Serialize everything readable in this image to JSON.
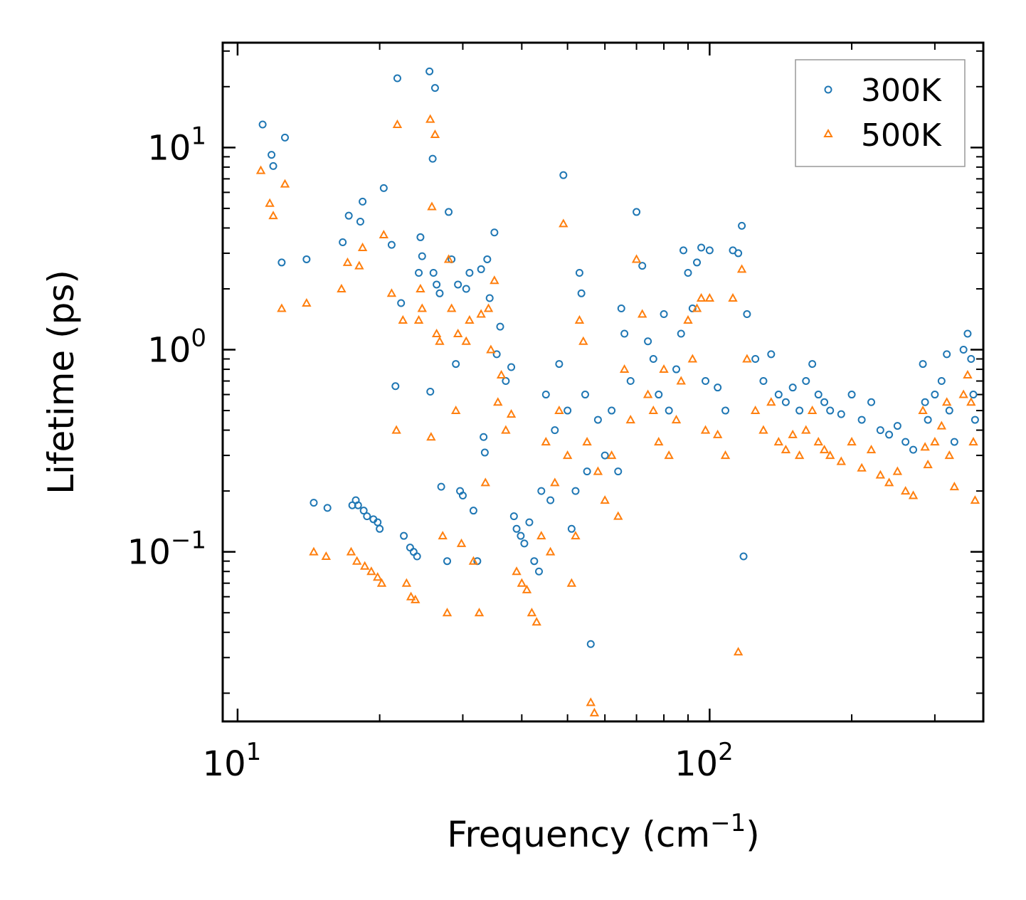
{
  "chart_data": {
    "type": "scatter",
    "title": "",
    "xlabel": "Frequency (cm",
    "xlabel_sup": "−1",
    "xlabel_end": ")",
    "ylabel": "Lifetime (ps)",
    "xscale": "log",
    "yscale": "log",
    "xlim": [
      9.3,
      380
    ],
    "ylim": [
      0.0145,
      33
    ],
    "x_ticks": [
      {
        "value": 10,
        "base": "10",
        "exp": "1"
      },
      {
        "value": 100,
        "base": "10",
        "exp": "2"
      }
    ],
    "y_ticks": [
      {
        "value": 0.1,
        "base": "10",
        "exp": "−1"
      },
      {
        "value": 1,
        "base": "10",
        "exp": "0"
      },
      {
        "value": 10,
        "base": "10",
        "exp": "1"
      }
    ],
    "legend_position": "top-right",
    "series": [
      {
        "name": "300K",
        "marker": "circle",
        "color": "#1f77b4",
        "points": [
          [
            11.3,
            13.0
          ],
          [
            11.8,
            9.2
          ],
          [
            11.9,
            8.1
          ],
          [
            12.4,
            2.7
          ],
          [
            12.6,
            11.2
          ],
          [
            14.0,
            2.8
          ],
          [
            14.5,
            0.175
          ],
          [
            15.5,
            0.165
          ],
          [
            16.7,
            3.4
          ],
          [
            17.2,
            4.6
          ],
          [
            17.5,
            0.17
          ],
          [
            17.8,
            0.18
          ],
          [
            18.0,
            0.17
          ],
          [
            18.2,
            4.3
          ],
          [
            18.4,
            5.4
          ],
          [
            18.5,
            0.16
          ],
          [
            18.8,
            0.15
          ],
          [
            19.4,
            0.145
          ],
          [
            19.8,
            0.14
          ],
          [
            20.0,
            0.13
          ],
          [
            20.4,
            6.3
          ],
          [
            21.2,
            3.3
          ],
          [
            21.6,
            0.66
          ],
          [
            21.8,
            22.0
          ],
          [
            22.2,
            1.7
          ],
          [
            22.5,
            0.12
          ],
          [
            23.2,
            0.105
          ],
          [
            23.6,
            0.1
          ],
          [
            24.0,
            0.095
          ],
          [
            24.2,
            2.4
          ],
          [
            24.4,
            3.6
          ],
          [
            24.6,
            2.9
          ],
          [
            25.5,
            23.8
          ],
          [
            25.6,
            0.62
          ],
          [
            25.9,
            8.8
          ],
          [
            26.0,
            2.4
          ],
          [
            26.2,
            19.7
          ],
          [
            26.4,
            2.1
          ],
          [
            26.8,
            1.9
          ],
          [
            27.0,
            0.21
          ],
          [
            27.8,
            0.09
          ],
          [
            28.0,
            4.8
          ],
          [
            28.4,
            2.8
          ],
          [
            29.0,
            0.85
          ],
          [
            29.3,
            2.1
          ],
          [
            29.6,
            0.2
          ],
          [
            30.0,
            0.19
          ],
          [
            30.5,
            2.0
          ],
          [
            31.0,
            2.4
          ],
          [
            31.6,
            0.16
          ],
          [
            32.2,
            0.09
          ],
          [
            32.8,
            2.5
          ],
          [
            33.2,
            0.37
          ],
          [
            33.4,
            0.31
          ],
          [
            33.8,
            2.8
          ],
          [
            34.2,
            1.8
          ],
          [
            35.0,
            3.8
          ],
          [
            35.4,
            0.95
          ],
          [
            36.0,
            1.3
          ],
          [
            37.0,
            0.7
          ],
          [
            38.0,
            0.82
          ],
          [
            38.5,
            0.15
          ],
          [
            39.0,
            0.13
          ],
          [
            39.8,
            0.12
          ],
          [
            40.5,
            0.11
          ],
          [
            41.5,
            0.14
          ],
          [
            42.5,
            0.09
          ],
          [
            43.5,
            0.08
          ],
          [
            44.0,
            0.2
          ],
          [
            45.0,
            0.6
          ],
          [
            46.0,
            0.18
          ],
          [
            47.0,
            0.4
          ],
          [
            48.0,
            0.85
          ],
          [
            49.0,
            7.3
          ],
          [
            50.0,
            0.5
          ],
          [
            51.0,
            0.13
          ],
          [
            52.0,
            0.2
          ],
          [
            53.0,
            2.4
          ],
          [
            53.5,
            1.9
          ],
          [
            54.5,
            0.6
          ],
          [
            55.0,
            0.25
          ],
          [
            56.0,
            0.035
          ],
          [
            58.0,
            0.45
          ],
          [
            60.0,
            0.3
          ],
          [
            62.0,
            0.5
          ],
          [
            64.0,
            0.25
          ],
          [
            65.0,
            1.6
          ],
          [
            66.0,
            1.2
          ],
          [
            68.0,
            0.7
          ],
          [
            70.0,
            4.8
          ],
          [
            72.0,
            2.6
          ],
          [
            74.0,
            1.1
          ],
          [
            76.0,
            0.9
          ],
          [
            78.0,
            0.6
          ],
          [
            80.0,
            1.5
          ],
          [
            82.0,
            0.5
          ],
          [
            85.0,
            0.8
          ],
          [
            87.0,
            1.2
          ],
          [
            88.0,
            3.1
          ],
          [
            90.0,
            2.4
          ],
          [
            92.0,
            1.6
          ],
          [
            94.0,
            2.7
          ],
          [
            96.0,
            3.2
          ],
          [
            98.0,
            0.7
          ],
          [
            100.0,
            3.1
          ],
          [
            104.0,
            0.65
          ],
          [
            108.0,
            0.5
          ],
          [
            112.0,
            3.1
          ],
          [
            115.0,
            3.0
          ],
          [
            117.0,
            4.1
          ],
          [
            118.0,
            0.095
          ],
          [
            120.0,
            1.5
          ],
          [
            125.0,
            0.9
          ],
          [
            130.0,
            0.7
          ],
          [
            135.0,
            0.95
          ],
          [
            140.0,
            0.6
          ],
          [
            145.0,
            0.55
          ],
          [
            150.0,
            0.65
          ],
          [
            155.0,
            0.5
          ],
          [
            160.0,
            0.7
          ],
          [
            165.0,
            0.85
          ],
          [
            170.0,
            0.6
          ],
          [
            175.0,
            0.55
          ],
          [
            180.0,
            0.5
          ],
          [
            190.0,
            0.48
          ],
          [
            200.0,
            0.6
          ],
          [
            210.0,
            0.45
          ],
          [
            220.0,
            0.55
          ],
          [
            230.0,
            0.4
          ],
          [
            240.0,
            0.38
          ],
          [
            250.0,
            0.42
          ],
          [
            260.0,
            0.35
          ],
          [
            270.0,
            0.32
          ],
          [
            283.0,
            0.85
          ],
          [
            286.0,
            0.55
          ],
          [
            290.0,
            0.45
          ],
          [
            300.0,
            0.6
          ],
          [
            310.0,
            0.7
          ],
          [
            318.0,
            0.95
          ],
          [
            322.0,
            0.5
          ],
          [
            330.0,
            0.35
          ],
          [
            345.0,
            1.0
          ],
          [
            352.0,
            1.2
          ],
          [
            358.0,
            0.9
          ],
          [
            362.0,
            0.6
          ],
          [
            365.0,
            0.45
          ]
        ]
      },
      {
        "name": "500K",
        "marker": "triangle",
        "color": "#ff7f0e",
        "points": [
          [
            11.2,
            7.7
          ],
          [
            11.7,
            5.3
          ],
          [
            11.9,
            4.6
          ],
          [
            12.4,
            1.6
          ],
          [
            12.6,
            6.6
          ],
          [
            14.0,
            1.7
          ],
          [
            14.5,
            0.1
          ],
          [
            15.4,
            0.095
          ],
          [
            16.6,
            2.0
          ],
          [
            17.1,
            2.7
          ],
          [
            17.4,
            0.1
          ],
          [
            17.9,
            0.09
          ],
          [
            18.1,
            2.6
          ],
          [
            18.4,
            3.2
          ],
          [
            18.6,
            0.085
          ],
          [
            19.2,
            0.08
          ],
          [
            19.8,
            0.075
          ],
          [
            20.2,
            0.07
          ],
          [
            20.4,
            3.7
          ],
          [
            21.2,
            1.9
          ],
          [
            21.7,
            0.4
          ],
          [
            21.8,
            13.0
          ],
          [
            22.4,
            1.4
          ],
          [
            22.8,
            0.07
          ],
          [
            23.3,
            0.06
          ],
          [
            23.8,
            0.058
          ],
          [
            24.2,
            1.4
          ],
          [
            24.4,
            2.0
          ],
          [
            24.6,
            1.6
          ],
          [
            25.6,
            13.8
          ],
          [
            25.7,
            0.37
          ],
          [
            25.8,
            5.1
          ],
          [
            26.2,
            11.6
          ],
          [
            26.4,
            1.2
          ],
          [
            26.8,
            1.1
          ],
          [
            27.2,
            0.12
          ],
          [
            27.8,
            0.05
          ],
          [
            28.0,
            2.8
          ],
          [
            28.4,
            1.6
          ],
          [
            29.0,
            0.5
          ],
          [
            29.3,
            1.2
          ],
          [
            29.8,
            0.11
          ],
          [
            30.5,
            1.1
          ],
          [
            31.0,
            1.4
          ],
          [
            31.6,
            0.09
          ],
          [
            32.5,
            0.05
          ],
          [
            32.8,
            1.5
          ],
          [
            33.5,
            0.22
          ],
          [
            34.0,
            1.6
          ],
          [
            34.4,
            1.0
          ],
          [
            35.0,
            2.2
          ],
          [
            35.6,
            0.55
          ],
          [
            36.2,
            0.75
          ],
          [
            37.0,
            0.4
          ],
          [
            38.0,
            0.48
          ],
          [
            39.0,
            0.08
          ],
          [
            40.0,
            0.07
          ],
          [
            41.0,
            0.065
          ],
          [
            42.0,
            0.05
          ],
          [
            43.0,
            0.045
          ],
          [
            44.0,
            0.12
          ],
          [
            45.0,
            0.35
          ],
          [
            46.0,
            0.1
          ],
          [
            47.0,
            0.22
          ],
          [
            48.0,
            0.5
          ],
          [
            49.0,
            4.2
          ],
          [
            50.0,
            0.3
          ],
          [
            51.0,
            0.07
          ],
          [
            52.0,
            0.12
          ],
          [
            53.0,
            1.4
          ],
          [
            54.0,
            1.1
          ],
          [
            55.0,
            0.35
          ],
          [
            56.0,
            0.018
          ],
          [
            57.0,
            0.016
          ],
          [
            58.0,
            0.25
          ],
          [
            60.0,
            0.18
          ],
          [
            62.0,
            0.3
          ],
          [
            64.0,
            0.15
          ],
          [
            66.0,
            0.8
          ],
          [
            68.0,
            0.45
          ],
          [
            70.0,
            2.8
          ],
          [
            72.0,
            1.5
          ],
          [
            74.0,
            0.6
          ],
          [
            76.0,
            0.5
          ],
          [
            78.0,
            0.35
          ],
          [
            80.0,
            0.8
          ],
          [
            82.0,
            0.3
          ],
          [
            85.0,
            0.45
          ],
          [
            87.0,
            0.7
          ],
          [
            90.0,
            1.4
          ],
          [
            92.0,
            0.9
          ],
          [
            94.0,
            1.6
          ],
          [
            96.0,
            1.8
          ],
          [
            98.0,
            0.4
          ],
          [
            100.0,
            1.8
          ],
          [
            104.0,
            0.38
          ],
          [
            108.0,
            0.3
          ],
          [
            112.0,
            1.8
          ],
          [
            115.0,
            0.032
          ],
          [
            117.0,
            2.5
          ],
          [
            120.0,
            0.9
          ],
          [
            125.0,
            0.5
          ],
          [
            130.0,
            0.4
          ],
          [
            135.0,
            0.55
          ],
          [
            140.0,
            0.35
          ],
          [
            145.0,
            0.32
          ],
          [
            150.0,
            0.38
          ],
          [
            155.0,
            0.3
          ],
          [
            160.0,
            0.4
          ],
          [
            165.0,
            0.5
          ],
          [
            170.0,
            0.35
          ],
          [
            175.0,
            0.32
          ],
          [
            180.0,
            0.3
          ],
          [
            190.0,
            0.28
          ],
          [
            200.0,
            0.35
          ],
          [
            210.0,
            0.26
          ],
          [
            220.0,
            0.32
          ],
          [
            230.0,
            0.24
          ],
          [
            240.0,
            0.22
          ],
          [
            250.0,
            0.25
          ],
          [
            260.0,
            0.2
          ],
          [
            270.0,
            0.19
          ],
          [
            283.0,
            0.5
          ],
          [
            286.0,
            0.33
          ],
          [
            290.0,
            0.27
          ],
          [
            300.0,
            0.35
          ],
          [
            310.0,
            0.42
          ],
          [
            318.0,
            0.55
          ],
          [
            322.0,
            0.3
          ],
          [
            330.0,
            0.21
          ],
          [
            345.0,
            0.6
          ],
          [
            352.0,
            0.75
          ],
          [
            358.0,
            0.55
          ],
          [
            362.0,
            0.35
          ],
          [
            365.0,
            0.18
          ]
        ]
      }
    ]
  }
}
